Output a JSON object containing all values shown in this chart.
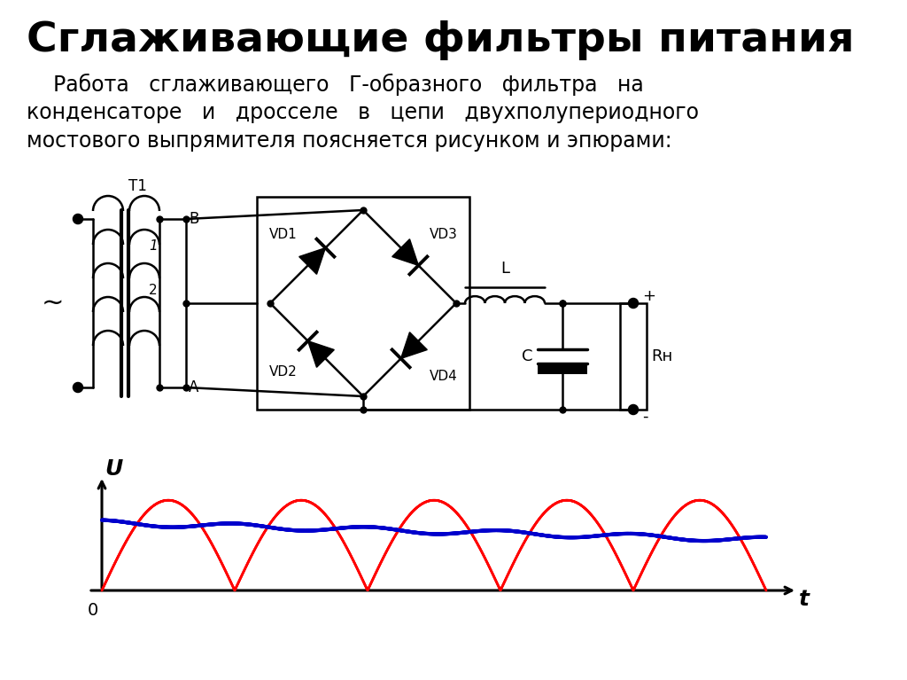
{
  "title": "Сглаживающие фильтры питания",
  "bg_color": "#ffffff",
  "title_fontsize": 34,
  "body_fontsize": 17,
  "text_color": "#000000",
  "red_color": "#ff0000",
  "blue_color": "#0000cc",
  "black_color": "#000000",
  "subtitle_lines": [
    "    Работа   сглаживающего   Г-образного   фильтра   на",
    "конденсаторе   и   дросселе   в   цепи   двухполупериодного",
    "мостового выпрямителя поясняется рисунком и эпюрами:"
  ]
}
